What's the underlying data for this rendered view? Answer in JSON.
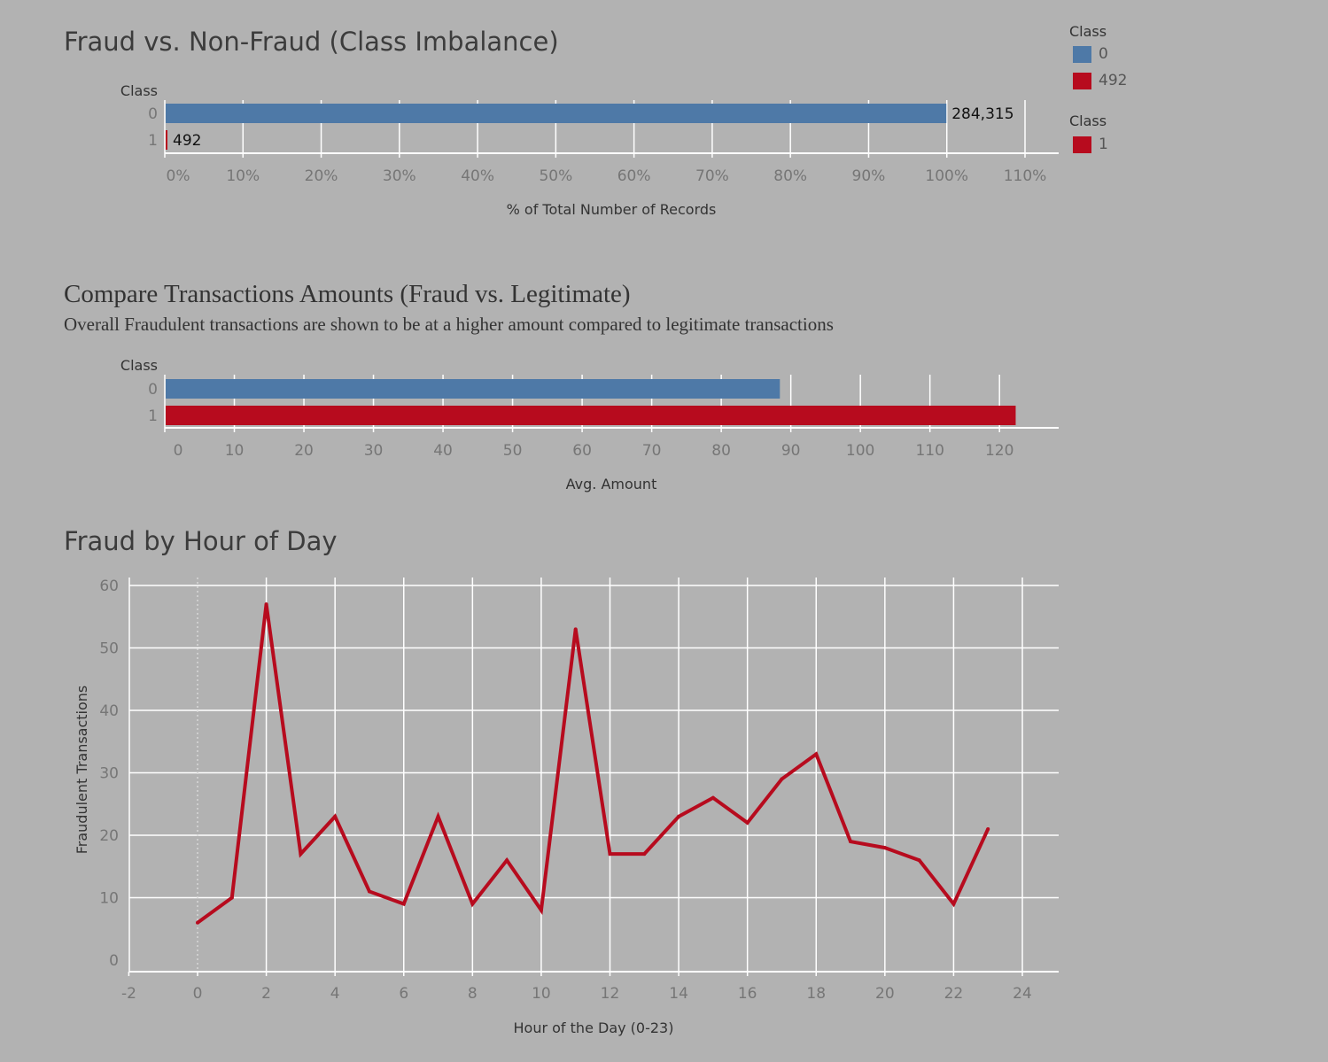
{
  "colors": {
    "class0": "#4e79a7",
    "class1": "#b70b1e",
    "grid": "#ffffff",
    "tick": "#767676",
    "label": "#333333"
  },
  "chart1": {
    "title": "Fraud vs. Non-Fraud (Class Imbalance)",
    "ylabel": "Class",
    "xlabel": "% of Total Number of Records",
    "xticks": [
      "0%",
      "10%",
      "20%",
      "30%",
      "40%",
      "50%",
      "60%",
      "70%",
      "80%",
      "90%",
      "100%",
      "110%"
    ]
  },
  "chart2": {
    "title": "Compare Transactions Amounts (Fraud vs. Legitimate)",
    "subtitle": "Overall Fraudulent transactions are shown to be at a higher amount compared to legitimate transactions",
    "ylabel": "Class",
    "xlabel": "Avg. Amount",
    "xticks": [
      "0",
      "10",
      "20",
      "30",
      "40",
      "50",
      "60",
      "70",
      "80",
      "90",
      "100",
      "110",
      "120"
    ]
  },
  "chart3": {
    "title": "Fraud by Hour of Day",
    "xlabel": "Hour of the Day (0-23)",
    "ylabel": "Fraudulent Transactions",
    "xticks": [
      "-2",
      "0",
      "2",
      "4",
      "6",
      "8",
      "10",
      "12",
      "14",
      "16",
      "18",
      "20",
      "22",
      "24"
    ],
    "yticks": [
      "0",
      "10",
      "20",
      "30",
      "40",
      "50",
      "60"
    ]
  },
  "legend": {
    "title1": "Class",
    "items1": [
      {
        "label": "0",
        "color": "#4e79a7"
      },
      {
        "label": "492",
        "color": "#b70b1e"
      }
    ],
    "title2": "Class",
    "items2": [
      {
        "label": "1",
        "color": "#b70b1e"
      }
    ]
  },
  "chart_data": [
    {
      "type": "bar",
      "orientation": "horizontal",
      "title": "Fraud vs. Non-Fraud (Class Imbalance)",
      "xlabel": "% of Total Number of Records",
      "ylabel": "Class",
      "categories": [
        "0",
        "1"
      ],
      "values": [
        99.83,
        0.17
      ],
      "data_labels": [
        "284,315",
        "492"
      ],
      "xlim": [
        0,
        110
      ],
      "grid": true
    },
    {
      "type": "bar",
      "orientation": "horizontal",
      "title": "Compare Transactions Amounts (Fraud vs. Legitimate)",
      "subtitle": "Overall Fraudulent transactions are shown to be at a higher amount compared to legitimate transactions",
      "xlabel": "Avg. Amount",
      "ylabel": "Class",
      "categories": [
        "0",
        "1"
      ],
      "values": [
        88.3,
        122.2
      ],
      "xlim": [
        0,
        128
      ],
      "grid": true
    },
    {
      "type": "line",
      "title": "Fraud by Hour of Day",
      "xlabel": "Hour of the Day (0-23)",
      "ylabel": "Fraudulent Transactions",
      "x": [
        0,
        1,
        2,
        3,
        4,
        5,
        6,
        7,
        8,
        9,
        10,
        11,
        12,
        13,
        14,
        15,
        16,
        17,
        18,
        19,
        20,
        21,
        22,
        23
      ],
      "series": [
        {
          "values": [
            6,
            10,
            57,
            17,
            23,
            11,
            9,
            23,
            9,
            16,
            8,
            53,
            17,
            17,
            23,
            26,
            22,
            29,
            33,
            19,
            18,
            16,
            9,
            21
          ]
        }
      ],
      "xlim": [
        -2,
        25
      ],
      "ylim": [
        0,
        60
      ],
      "grid": true
    }
  ]
}
